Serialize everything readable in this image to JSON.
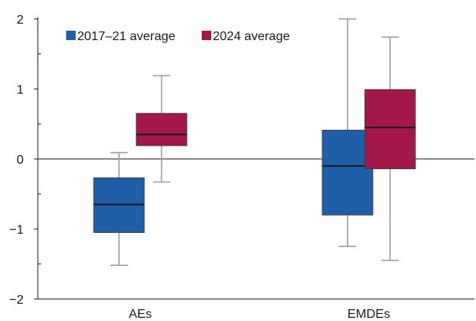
{
  "chart_data": {
    "type": "boxplot",
    "categories": [
      "AEs",
      "EMDEs"
    ],
    "ylim": [
      -2,
      2
    ],
    "yticks": [
      2,
      1,
      0,
      -1,
      -2
    ],
    "ytick_labels": [
      "2",
      "1",
      "0",
      "−1",
      "−2"
    ],
    "grid": false,
    "zero_line": true,
    "legend_position": "top-left",
    "series": [
      {
        "name": "2017–21 average",
        "color": "#1f5ea8",
        "boxes": [
          {
            "category": "AEs",
            "min": -1.52,
            "q1": -1.05,
            "median": -0.65,
            "q3": -0.27,
            "max": 0.09
          },
          {
            "category": "EMDEs",
            "min": -1.25,
            "q1": -0.8,
            "median": -0.1,
            "q3": 0.41,
            "max": 2.0
          }
        ]
      },
      {
        "name": "2024 average",
        "color": "#a3174a",
        "boxes": [
          {
            "category": "AEs",
            "min": -0.33,
            "q1": 0.19,
            "median": 0.35,
            "q3": 0.65,
            "max": 1.19
          },
          {
            "category": "EMDEs",
            "min": -1.45,
            "q1": -0.14,
            "median": 0.45,
            "q3": 0.99,
            "max": 1.74
          }
        ]
      }
    ]
  }
}
